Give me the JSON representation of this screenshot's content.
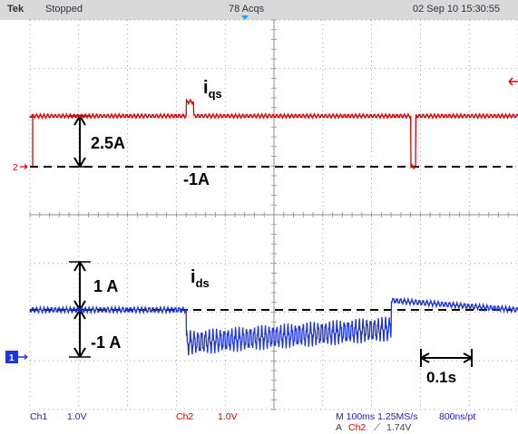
{
  "header": {
    "brand": "Tek",
    "status": "Stopped",
    "acquisitions": "78 Acqs",
    "datetime": "02 Sep 10 15:30:55"
  },
  "colors": {
    "background": "#ffffff",
    "grid": "#8f8f8f",
    "ch1": "#1f35d6",
    "ch2": "#e00000",
    "footer_text": "#1a1acc"
  },
  "annotations": {
    "iqs_main": "i",
    "iqs_sub": "qs",
    "step_top": "2.5A",
    "ref_top": "-1A",
    "ids_main": "i",
    "ids_sub": "ds",
    "step_bottom": "1 A",
    "ref_bottom": "-1 A",
    "time_scale": "0.1s"
  },
  "markers": {
    "ch2": "2",
    "ch1": "1"
  },
  "footer": {
    "ch1_label": "Ch1",
    "ch1_scale": "1.0V",
    "ch2_label": "Ch2",
    "ch2_scale": "1.0V",
    "timebase": "M 100ms 1.25MS/s",
    "record": "800ns/pt",
    "trigger_prefix": "A",
    "trigger_source": "Ch2",
    "trigger_level": "1.74V"
  },
  "chart_data": [
    {
      "type": "line",
      "series": [
        {
          "name": "iqs",
          "x": [
            0,
            0.32,
            0.32,
            0.335,
            0.335,
            0.78,
            0.78,
            0.79,
            0.79,
            1.0
          ],
          "y": [
            1.5,
            1.5,
            2.2,
            2.2,
            1.5,
            1.5,
            -1.0,
            -1.0,
            1.5,
            1.5
          ]
        }
      ],
      "reference_level": -1,
      "step_size": 2.5,
      "xlim": [
        0,
        1
      ],
      "ylim": [
        -4,
        4
      ],
      "grid": true
    },
    {
      "type": "line",
      "series": [
        {
          "name": "ids",
          "x": [
            0,
            0.32,
            0.32,
            0.74,
            0.74,
            1.0
          ],
          "y": [
            0.0,
            0.0,
            -0.7,
            -0.4,
            0.2,
            0.0
          ]
        }
      ],
      "reference_level": -1,
      "step_size": 1,
      "xlim": [
        0,
        1
      ],
      "ylim": [
        -4,
        4
      ],
      "grid": true
    }
  ]
}
